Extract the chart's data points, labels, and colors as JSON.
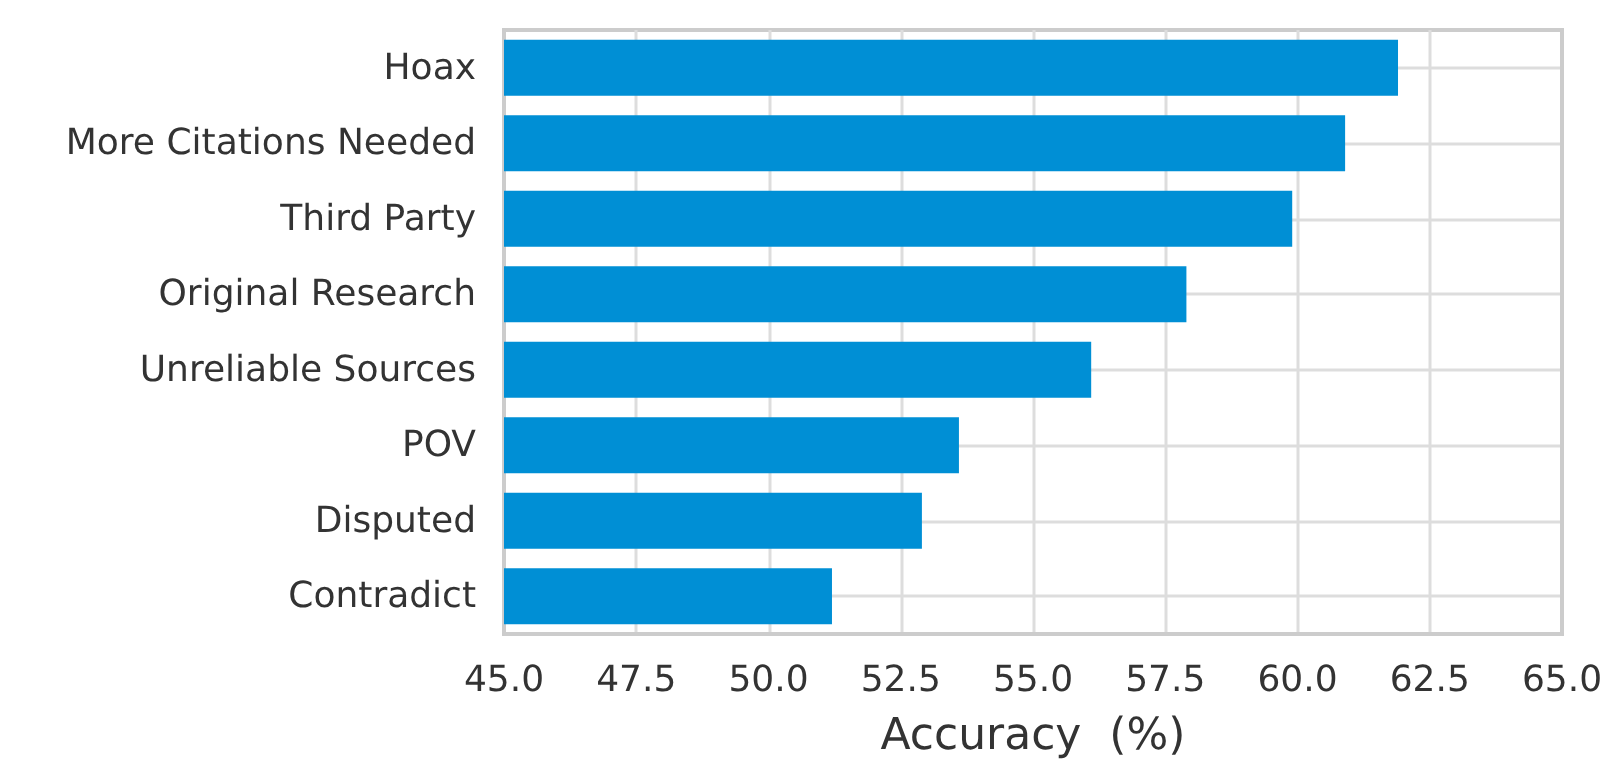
{
  "chart_data": {
    "type": "bar",
    "orientation": "horizontal",
    "xlabel": "Accuracy  (%)",
    "categories": [
      "Hoax",
      "More Citations Needed",
      "Third Party",
      "Original Research",
      "Unreliable Sources",
      "POV",
      "Disputed",
      "Contradict"
    ],
    "values": [
      61.9,
      60.9,
      59.9,
      57.9,
      56.1,
      53.6,
      52.9,
      51.2
    ],
    "color": "#008fd5",
    "xlim": [
      45,
      65
    ],
    "xticks": [
      {
        "value": 45,
        "label": "45.0"
      },
      {
        "value": 47.5,
        "label": "47.5"
      },
      {
        "value": 50,
        "label": "50.0"
      },
      {
        "value": 52.5,
        "label": "52.5"
      },
      {
        "value": 55,
        "label": "55.0"
      },
      {
        "value": 57.5,
        "label": "57.5"
      },
      {
        "value": 60,
        "label": "60.0"
      },
      {
        "value": 62.5,
        "label": "62.5"
      },
      {
        "value": 65,
        "label": "65.0"
      }
    ],
    "grid": true
  }
}
